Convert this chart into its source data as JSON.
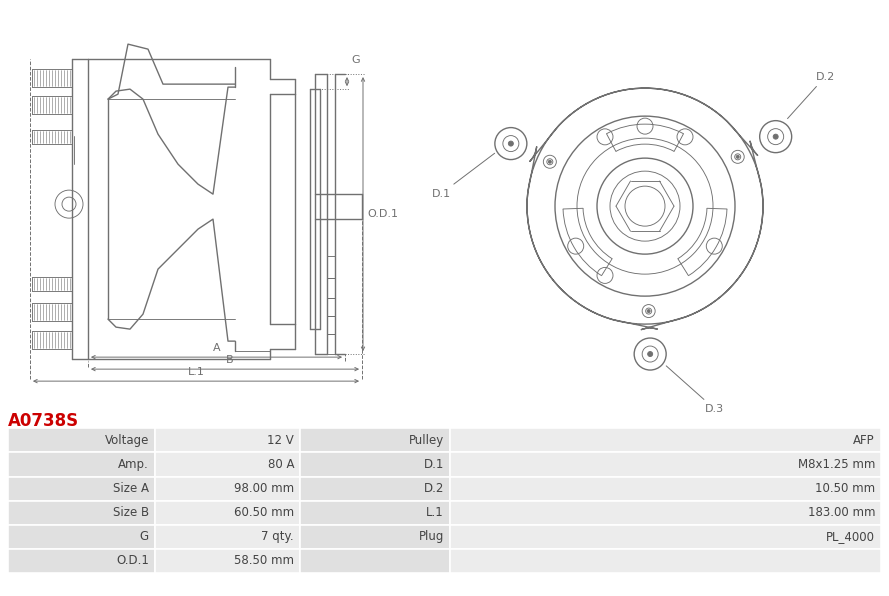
{
  "title": "A0738S",
  "title_color": "#cc0000",
  "background_color": "#ffffff",
  "table_rows": [
    [
      "Voltage",
      "12 V",
      "Pulley",
      "AFP"
    ],
    [
      "Amp.",
      "80 A",
      "D.1",
      "M8x1.25 mm"
    ],
    [
      "Size A",
      "98.00 mm",
      "D.2",
      "10.50 mm"
    ],
    [
      "Size B",
      "60.50 mm",
      "L.1",
      "183.00 mm"
    ],
    [
      "G",
      "7 qty.",
      "Plug",
      "PL_4000"
    ],
    [
      "O.D.1",
      "58.50 mm",
      "",
      ""
    ]
  ],
  "row_bg_label": "#e0e0e0",
  "row_bg_value": "#ececec",
  "table_text_color": "#444444",
  "border_color": "#ffffff",
  "line_color": "#707070",
  "dim_color": "#707070"
}
